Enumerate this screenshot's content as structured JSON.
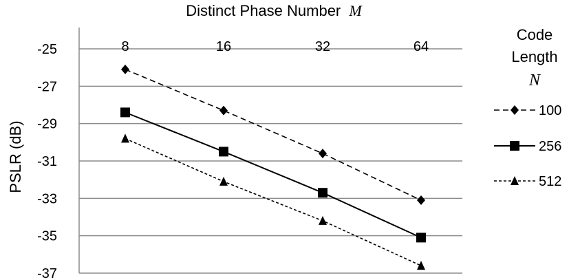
{
  "chart_data": {
    "type": "line",
    "title": "Distinct Phase Number",
    "title_symbol": "M",
    "xlabel": "Distinct Phase Number M",
    "ylabel": "PSLR (dB)",
    "categories": [
      "8",
      "16",
      "32",
      "64"
    ],
    "x_axis_position": "top",
    "ylim": [
      -37,
      -25
    ],
    "yticks": [
      -25,
      -27,
      -29,
      -31,
      -33,
      -35,
      -37
    ],
    "grid": "horizontal",
    "legend": {
      "title_line1": "Code",
      "title_line2": "Length",
      "title_symbol": "N",
      "placement": "right"
    },
    "series": [
      {
        "name": "100",
        "values": [
          -26.1,
          -28.3,
          -30.6,
          -33.1
        ],
        "line_style": "dashed",
        "marker": "diamond",
        "color": "#000000"
      },
      {
        "name": "256",
        "values": [
          -28.4,
          -30.5,
          -32.7,
          -35.1
        ],
        "line_style": "solid",
        "marker": "square",
        "color": "#000000"
      },
      {
        "name": "512",
        "values": [
          -29.8,
          -32.1,
          -34.2,
          -36.6
        ],
        "line_style": "dotted",
        "marker": "triangle",
        "color": "#000000"
      }
    ]
  }
}
